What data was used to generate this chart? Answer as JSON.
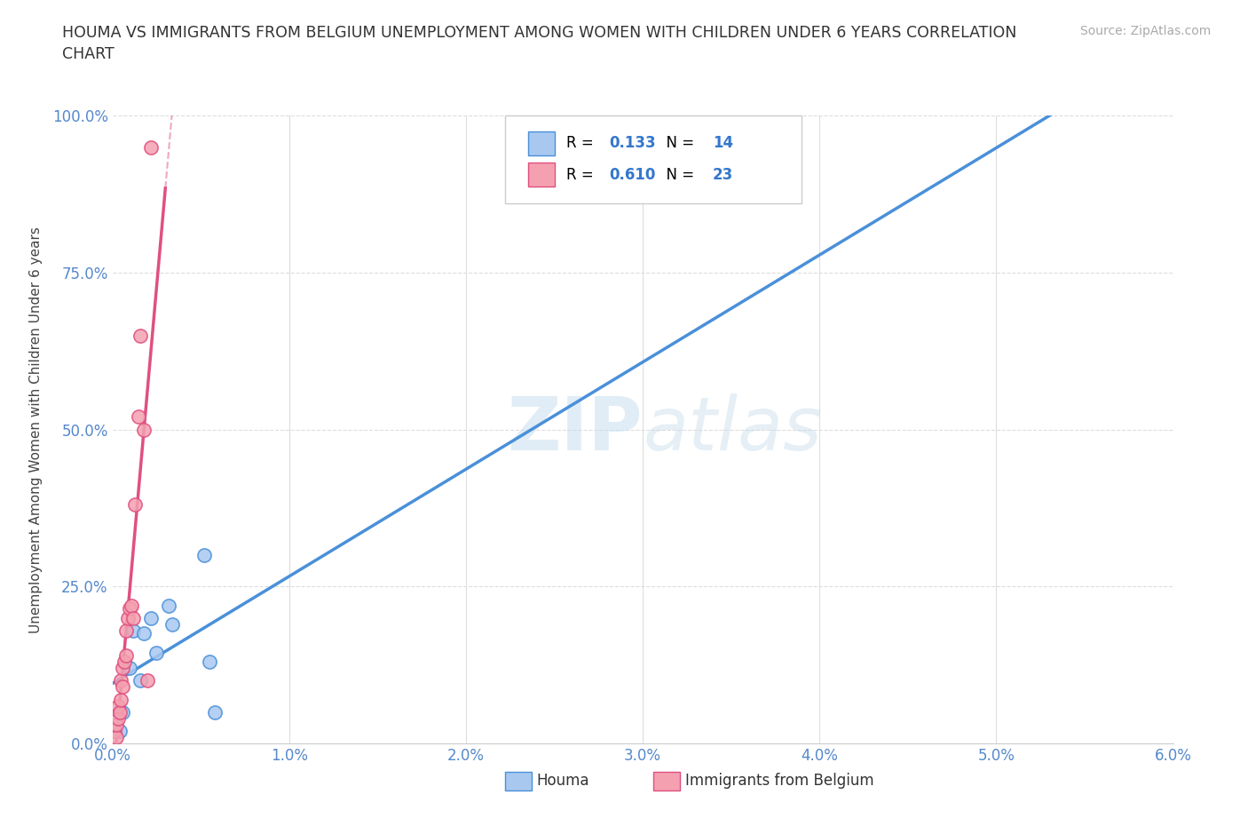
{
  "title": "HOUMA VS IMMIGRANTS FROM BELGIUM UNEMPLOYMENT AMONG WOMEN WITH CHILDREN UNDER 6 YEARS CORRELATION\nCHART",
  "source": "Source: ZipAtlas.com",
  "ylabel": "Unemployment Among Women with Children Under 6 years",
  "xlim": [
    0.0,
    0.06
  ],
  "ylim": [
    0.0,
    1.0
  ],
  "xticks": [
    0.0,
    0.01,
    0.02,
    0.03,
    0.04,
    0.05,
    0.06
  ],
  "yticks": [
    0.0,
    0.25,
    0.5,
    0.75,
    1.0
  ],
  "xtick_labels": [
    "0.0%",
    "1.0%",
    "2.0%",
    "3.0%",
    "4.0%",
    "5.0%",
    "6.0%"
  ],
  "ytick_labels": [
    "0.0%",
    "25.0%",
    "50.0%",
    "75.0%",
    "100.0%"
  ],
  "houma_x": [
    0.0004,
    0.0004,
    0.0006,
    0.001,
    0.0012,
    0.0016,
    0.0018,
    0.0022,
    0.0025,
    0.0032,
    0.0034,
    0.0052,
    0.0055,
    0.0058
  ],
  "houma_y": [
    0.05,
    0.02,
    0.05,
    0.12,
    0.18,
    0.1,
    0.175,
    0.2,
    0.145,
    0.22,
    0.19,
    0.3,
    0.13,
    0.05
  ],
  "belgium_x": [
    0.0001,
    0.0002,
    0.0002,
    0.0003,
    0.0003,
    0.0004,
    0.0005,
    0.0005,
    0.0006,
    0.0006,
    0.0007,
    0.0008,
    0.0008,
    0.0009,
    0.001,
    0.0011,
    0.0012,
    0.0013,
    0.0015,
    0.0016,
    0.0018,
    0.002,
    0.0022
  ],
  "belgium_y": [
    0.02,
    0.01,
    0.03,
    0.04,
    0.06,
    0.05,
    0.07,
    0.1,
    0.09,
    0.12,
    0.13,
    0.14,
    0.18,
    0.2,
    0.215,
    0.22,
    0.2,
    0.38,
    0.52,
    0.65,
    0.5,
    0.1,
    0.95
  ],
  "houma_color": "#a8c8f0",
  "belgium_color": "#f4a0b0",
  "houma_line_color": "#4a90d9",
  "belgium_line_color": "#e05080",
  "legend_R_houma": "0.133",
  "legend_N_houma": "14",
  "legend_R_belgium": "0.610",
  "legend_N_belgium": "23",
  "watermark_zip": "ZIP",
  "watermark_atlas": "atlas",
  "background_color": "#ffffff",
  "grid_color": "#dddddd"
}
